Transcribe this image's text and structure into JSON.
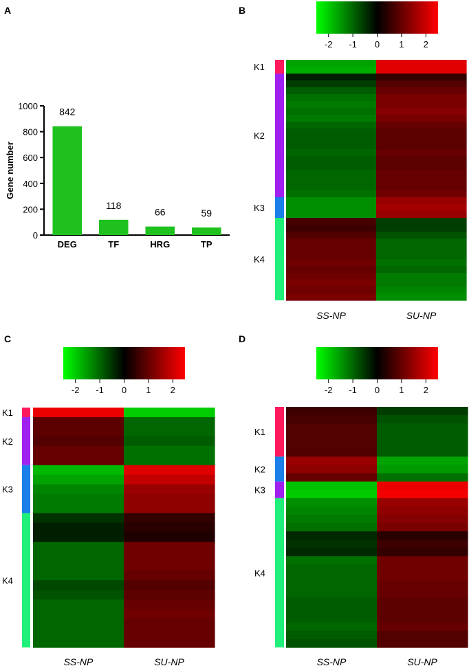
{
  "panels": {
    "a": "A",
    "b": "B",
    "c": "C",
    "d": "D"
  },
  "colors": {
    "bar": "#1FC11F",
    "green": "#00FF00",
    "black": "#000000",
    "red": "#FF0000"
  },
  "colorbar": {
    "ticks": [
      "-2",
      "-1",
      "0",
      "1",
      "2"
    ],
    "tick_values": [
      -2,
      -1,
      0,
      1,
      2
    ],
    "range": [
      -2.5,
      2.5
    ]
  },
  "chart_data": [
    {
      "type": "bar",
      "panel": "A",
      "title": "",
      "categories": [
        "DEG",
        "TF",
        "HRG",
        "TP"
      ],
      "values": [
        842,
        118,
        66,
        59
      ],
      "value_labels": [
        "842",
        "118",
        "66",
        "59"
      ],
      "xlabel": "",
      "ylabel": "Gene number",
      "ylim": [
        0,
        1000
      ],
      "yticks": [
        "0",
        "200",
        "400",
        "600",
        "800",
        "1000"
      ],
      "ytick_values": [
        0,
        200,
        400,
        600,
        800,
        1000
      ]
    },
    {
      "type": "heatmap",
      "panel": "B",
      "columns": [
        "SS-NP",
        "SU-NP"
      ],
      "clusters": [
        {
          "label": "K1",
          "color": "#FF1A5E",
          "rows": [
            [
              -1.6,
              2.2
            ],
            [
              -1.7,
              2.2
            ]
          ]
        },
        {
          "label": "K2",
          "color": "#A020F0",
          "rows": [
            [
              -0.3,
              0.5
            ],
            [
              -0.6,
              0.8
            ],
            [
              -0.9,
              1.0
            ],
            [
              -1.1,
              1.2
            ],
            [
              -1.2,
              1.2
            ],
            [
              -1.1,
              1.3
            ],
            [
              -1.2,
              1.2
            ],
            [
              -1.0,
              1.0
            ],
            [
              -0.9,
              0.9
            ],
            [
              -0.9,
              0.9
            ],
            [
              -0.9,
              0.9
            ],
            [
              -1.0,
              1.0
            ],
            [
              -0.9,
              0.9
            ],
            [
              -0.9,
              0.9
            ],
            [
              -1.0,
              1.0
            ],
            [
              -1.0,
              1.0
            ],
            [
              -1.0,
              1.0
            ],
            [
              -1.1,
              1.1
            ]
          ]
        },
        {
          "label": "K3",
          "color": "#1A7FE8",
          "rows": [
            [
              -1.4,
              1.5
            ],
            [
              -1.4,
              1.6
            ],
            [
              -1.4,
              1.5
            ]
          ]
        },
        {
          "label": "K4",
          "color": "#20F07A",
          "rows": [
            [
              0.7,
              -0.6
            ],
            [
              0.6,
              -0.6
            ],
            [
              0.8,
              -0.8
            ],
            [
              1.0,
              -1.0
            ],
            [
              1.0,
              -1.0
            ],
            [
              1.0,
              -1.0
            ],
            [
              1.1,
              -1.1
            ],
            [
              1.0,
              -1.0
            ],
            [
              1.1,
              -1.2
            ],
            [
              1.2,
              -1.2
            ],
            [
              1.1,
              -1.3
            ],
            [
              1.2,
              -1.4
            ]
          ]
        }
      ]
    },
    {
      "type": "heatmap",
      "panel": "C",
      "columns": [
        "SS-NP",
        "SU-NP"
      ],
      "clusters": [
        {
          "label": "K1",
          "color": "#FF1A5E",
          "rows": [
            [
              2.3,
              -2.0
            ]
          ]
        },
        {
          "label": "K2",
          "color": "#A020F0",
          "rows": [
            [
              0.9,
              -1.0
            ],
            [
              0.9,
              -1.0
            ],
            [
              0.8,
              -0.9
            ],
            [
              1.0,
              -1.1
            ],
            [
              1.0,
              -1.1
            ]
          ]
        },
        {
          "label": "K3",
          "color": "#1A7FE8",
          "rows": [
            [
              -1.8,
              2.2
            ],
            [
              -1.6,
              1.9
            ],
            [
              -1.3,
              1.5
            ],
            [
              -1.2,
              1.4
            ],
            [
              -1.2,
              1.4
            ]
          ]
        },
        {
          "label": "K4",
          "color": "#20F07A",
          "rows": [
            [
              -0.5,
              0.5
            ],
            [
              -0.3,
              0.4
            ],
            [
              -0.3,
              0.3
            ],
            [
              -1.0,
              1.1
            ],
            [
              -1.0,
              1.1
            ],
            [
              -1.0,
              1.1
            ],
            [
              -1.0,
              1.0
            ],
            [
              -0.7,
              0.8
            ],
            [
              -0.8,
              0.9
            ],
            [
              -1.0,
              1.0
            ],
            [
              -1.0,
              1.1
            ],
            [
              -1.0,
              1.0
            ],
            [
              -1.0,
              1.0
            ],
            [
              -1.0,
              1.0
            ]
          ]
        }
      ]
    },
    {
      "type": "heatmap",
      "panel": "D",
      "columns": [
        "SS-NP",
        "SU-NP"
      ],
      "clusters": [
        {
          "label": "K1",
          "color": "#FF1A5E",
          "rows": [
            [
              0.6,
              -0.6
            ],
            [
              0.7,
              -0.8
            ],
            [
              0.8,
              -0.9
            ],
            [
              0.8,
              -0.9
            ],
            [
              0.8,
              -0.9
            ],
            [
              0.8,
              -0.9
            ]
          ]
        },
        {
          "label": "K2",
          "color": "#1A7FE8",
          "rows": [
            [
              1.5,
              -1.6
            ],
            [
              1.4,
              -1.5
            ],
            [
              1.0,
              -1.1
            ]
          ]
        },
        {
          "label": "K3",
          "color": "#A020F0",
          "rows": [
            [
              -1.9,
              2.3
            ],
            [
              -2.0,
              2.4
            ]
          ]
        },
        {
          "label": "K4",
          "color": "#20F07A",
          "rows": [
            [
              -1.4,
              1.5
            ],
            [
              -1.3,
              1.4
            ],
            [
              -1.2,
              1.3
            ],
            [
              -1.1,
              1.2
            ],
            [
              -0.4,
              0.4
            ],
            [
              -0.5,
              0.6
            ],
            [
              -0.4,
              0.5
            ],
            [
              -1.1,
              1.1
            ],
            [
              -1.0,
              1.1
            ],
            [
              -1.0,
              1.1
            ],
            [
              -1.0,
              1.0
            ],
            [
              -1.0,
              1.0
            ],
            [
              -0.9,
              0.9
            ],
            [
              -0.9,
              0.9
            ],
            [
              -0.9,
              0.9
            ],
            [
              -1.0,
              1.0
            ],
            [
              -0.9,
              0.8
            ],
            [
              -0.8,
              0.8
            ]
          ]
        }
      ]
    }
  ]
}
